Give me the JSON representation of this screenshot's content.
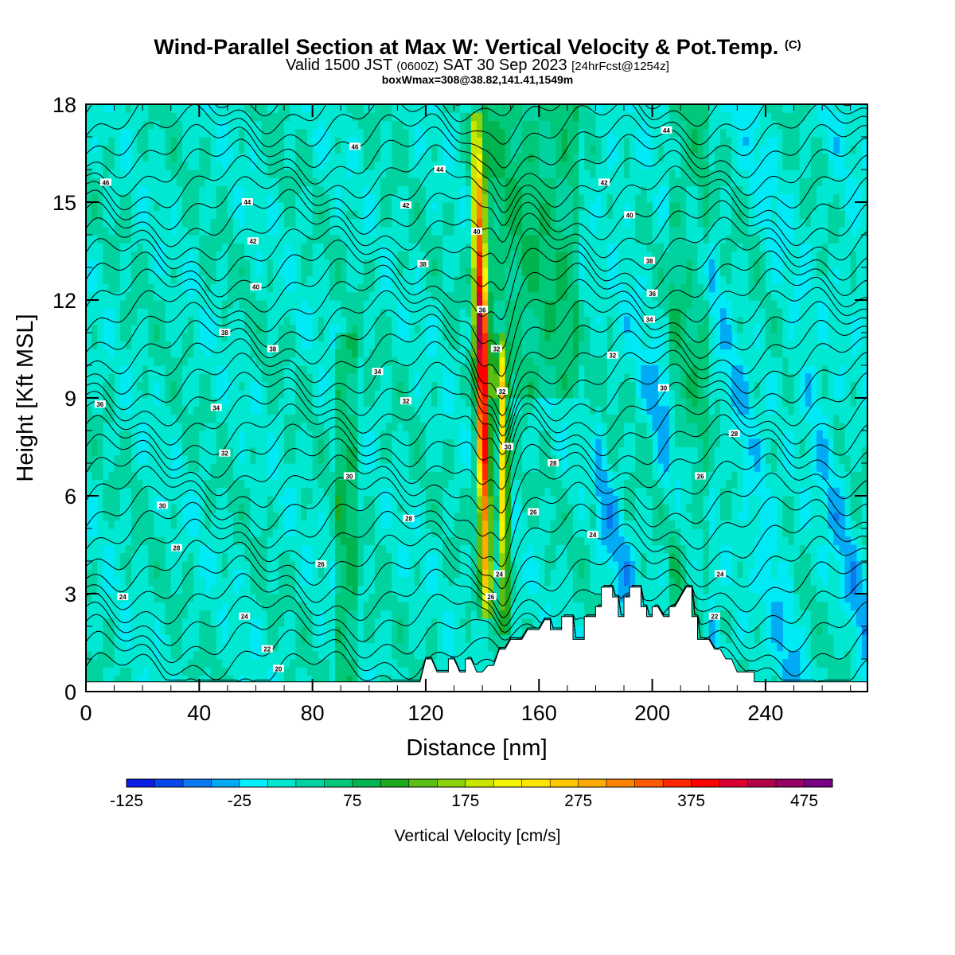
{
  "titles": {
    "main": "Wind-Parallel Section at Max W: Vertical Velocity & Pot.Temp.",
    "copyright": "(C)",
    "valid_pre": "Valid 1500 JST",
    "valid_utc": "(0600Z)",
    "valid_date": "SAT 30 Sep 2023",
    "forecast": "[24hrFcst@1254z]",
    "boxinfo": "boxWmax=308@38.82,141.41,1549m"
  },
  "chart_data": {
    "type": "contour-section",
    "xlabel": "Distance [nm]",
    "ylabel": "Height [Kft MSL]",
    "xlim": [
      0,
      276
    ],
    "ylim": [
      0,
      18
    ],
    "x_ticks": [
      0,
      40,
      80,
      120,
      160,
      200,
      240
    ],
    "y_ticks": [
      0,
      3,
      6,
      9,
      12,
      15,
      18
    ],
    "terrain_kft": [
      [
        0,
        0.3
      ],
      [
        118,
        0.3
      ],
      [
        120,
        1.0
      ],
      [
        122,
        1.0
      ],
      [
        124,
        0.6
      ],
      [
        128,
        0.6
      ],
      [
        128,
        1.0
      ],
      [
        130,
        1.0
      ],
      [
        132,
        0.6
      ],
      [
        134,
        0.6
      ],
      [
        134,
        1.0
      ],
      [
        136,
        1.0
      ],
      [
        138,
        0.6
      ],
      [
        140,
        0.6
      ],
      [
        142,
        0.8
      ],
      [
        144,
        0.8
      ],
      [
        146,
        1.3
      ],
      [
        148,
        1.3
      ],
      [
        150,
        1.6
      ],
      [
        154,
        1.6
      ],
      [
        156,
        1.9
      ],
      [
        160,
        1.9
      ],
      [
        162,
        2.2
      ],
      [
        164,
        2.2
      ],
      [
        164,
        1.9
      ],
      [
        168,
        1.9
      ],
      [
        168,
        2.3
      ],
      [
        172,
        2.3
      ],
      [
        172,
        1.6
      ],
      [
        176,
        1.6
      ],
      [
        176,
        2.3
      ],
      [
        180,
        2.3
      ],
      [
        180,
        2.6
      ],
      [
        182,
        2.6
      ],
      [
        182,
        3.2
      ],
      [
        186,
        3.2
      ],
      [
        186,
        2.9
      ],
      [
        188,
        2.9
      ],
      [
        188,
        2.3
      ],
      [
        190,
        2.3
      ],
      [
        190,
        2.9
      ],
      [
        192,
        2.9
      ],
      [
        192,
        3.2
      ],
      [
        196,
        3.2
      ],
      [
        196,
        2.6
      ],
      [
        198,
        2.6
      ],
      [
        198,
        2.3
      ],
      [
        200,
        2.3
      ],
      [
        200,
        2.6
      ],
      [
        202,
        2.6
      ],
      [
        204,
        2.3
      ],
      [
        206,
        2.3
      ],
      [
        206,
        2.6
      ],
      [
        208,
        2.6
      ],
      [
        210,
        2.9
      ],
      [
        212,
        3.2
      ],
      [
        214,
        3.2
      ],
      [
        214,
        2.3
      ],
      [
        216,
        2.3
      ],
      [
        216,
        1.6
      ],
      [
        220,
        1.6
      ],
      [
        222,
        1.3
      ],
      [
        224,
        1.3
      ],
      [
        226,
        1.0
      ],
      [
        228,
        1.0
      ],
      [
        230,
        0.6
      ],
      [
        236,
        0.6
      ],
      [
        236,
        0.3
      ],
      [
        276,
        0.3
      ]
    ],
    "updrafts": [
      {
        "x": 140,
        "z_bottom": 2.2,
        "z_top": 17.8,
        "peak": 420,
        "label": "main updraft"
      },
      {
        "x": 147,
        "z_bottom": 1.8,
        "z_top": 11.0,
        "peak": 250,
        "label": "secondary updraft"
      }
    ],
    "contour_labels": [
      {
        "x": 7,
        "z": 15.6,
        "text": "46"
      },
      {
        "x": 57,
        "z": 15.0,
        "text": "44"
      },
      {
        "x": 95,
        "z": 16.7,
        "text": "46"
      },
      {
        "x": 125,
        "z": 16.0,
        "text": "44"
      },
      {
        "x": 113,
        "z": 14.9,
        "text": "42"
      },
      {
        "x": 59,
        "z": 13.8,
        "text": "42"
      },
      {
        "x": 60,
        "z": 12.4,
        "text": "40"
      },
      {
        "x": 49,
        "z": 11.0,
        "text": "38"
      },
      {
        "x": 66,
        "z": 10.5,
        "text": "38"
      },
      {
        "x": 119,
        "z": 13.1,
        "text": "38"
      },
      {
        "x": 103,
        "z": 9.8,
        "text": "34"
      },
      {
        "x": 5,
        "z": 8.8,
        "text": "36"
      },
      {
        "x": 46,
        "z": 8.7,
        "text": "34"
      },
      {
        "x": 113,
        "z": 8.9,
        "text": "32"
      },
      {
        "x": 49,
        "z": 7.3,
        "text": "32"
      },
      {
        "x": 93,
        "z": 6.6,
        "text": "30"
      },
      {
        "x": 27,
        "z": 5.7,
        "text": "30"
      },
      {
        "x": 114,
        "z": 5.3,
        "text": "28"
      },
      {
        "x": 32,
        "z": 4.4,
        "text": "28"
      },
      {
        "x": 83,
        "z": 3.9,
        "text": "26"
      },
      {
        "x": 13,
        "z": 2.9,
        "text": "24"
      },
      {
        "x": 56,
        "z": 2.3,
        "text": "24"
      },
      {
        "x": 64,
        "z": 1.3,
        "text": "22"
      },
      {
        "x": 68,
        "z": 0.7,
        "text": "20"
      },
      {
        "x": 138,
        "z": 14.1,
        "text": "40"
      },
      {
        "x": 140,
        "z": 11.7,
        "text": "36"
      },
      {
        "x": 145,
        "z": 10.5,
        "text": "32"
      },
      {
        "x": 147,
        "z": 9.2,
        "text": "32"
      },
      {
        "x": 149,
        "z": 7.5,
        "text": "30"
      },
      {
        "x": 165,
        "z": 7.0,
        "text": "28"
      },
      {
        "x": 158,
        "z": 5.5,
        "text": "26"
      },
      {
        "x": 146,
        "z": 3.6,
        "text": "24"
      },
      {
        "x": 143,
        "z": 2.9,
        "text": "26"
      },
      {
        "x": 179,
        "z": 4.8,
        "text": "24"
      },
      {
        "x": 183,
        "z": 15.6,
        "text": "42"
      },
      {
        "x": 205,
        "z": 17.2,
        "text": "44"
      },
      {
        "x": 192,
        "z": 14.6,
        "text": "40"
      },
      {
        "x": 199,
        "z": 13.2,
        "text": "38"
      },
      {
        "x": 200,
        "z": 12.2,
        "text": "36"
      },
      {
        "x": 199,
        "z": 11.4,
        "text": "34"
      },
      {
        "x": 186,
        "z": 10.3,
        "text": "32"
      },
      {
        "x": 204,
        "z": 9.3,
        "text": "30"
      },
      {
        "x": 229,
        "z": 7.9,
        "text": "28"
      },
      {
        "x": 217,
        "z": 6.6,
        "text": "26"
      },
      {
        "x": 224,
        "z": 3.6,
        "text": "24"
      },
      {
        "x": 222,
        "z": 2.3,
        "text": "22"
      }
    ],
    "colorbar": {
      "title": "Vertical Velocity [cm/s]",
      "min": -125,
      "max": 500,
      "step": 25,
      "tick_labels": [
        "-125",
        "-25",
        "75",
        "175",
        "275",
        "375",
        "475"
      ],
      "colors": [
        "#0a1ce6",
        "#0846ee",
        "#0a78f0",
        "#00aaf5",
        "#00f0ff",
        "#00e8d2",
        "#00d2a0",
        "#00c87a",
        "#00b450",
        "#1eaa1e",
        "#5abe14",
        "#8cd20a",
        "#c8e600",
        "#f5f500",
        "#ffe600",
        "#ffc800",
        "#ffaa00",
        "#ff8200",
        "#ff5a00",
        "#ff2800",
        "#ff0000",
        "#dc0032",
        "#b40046",
        "#960064",
        "#780082"
      ]
    }
  }
}
